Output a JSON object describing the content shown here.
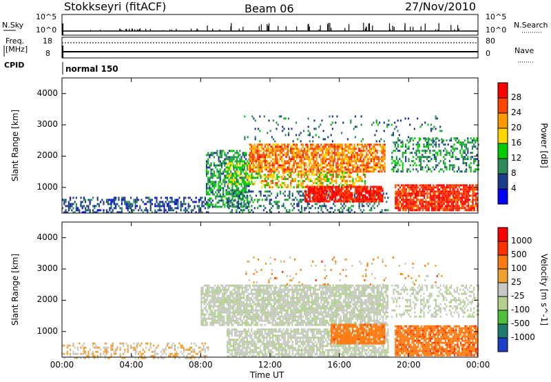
{
  "header": {
    "station": "Stokkseyri (fitACF)",
    "beam": "Beam 06",
    "date": "27/Nov/2010"
  },
  "status_panel": {
    "nsky_label": "N.Sky",
    "nsky_ticks": [
      "10^5",
      "10^0"
    ],
    "nsearch_label": "N.Search",
    "nsearch_ticks": [
      "10^5",
      "10^0"
    ],
    "freq_label_1": "Freq.",
    "freq_label_2": "[MHz]",
    "freq_ticks": [
      "18",
      "8"
    ],
    "nave_label": "Nave",
    "nave_ticks": [
      "80",
      "0"
    ],
    "cpid_label": "CPID",
    "cpid_value": "normal 150"
  },
  "colors": {
    "power_scale": [
      "#0000ff",
      "#1e3c8c",
      "#2e8b57",
      "#00cc00",
      "#ffd700",
      "#ff9900",
      "#ff4500",
      "#ff0000"
    ],
    "velocity_scale": [
      "#1a3fc9",
      "#1f7a6e",
      "#4dbf3a",
      "#b0d08c",
      "#c8c8c4",
      "#f0a030",
      "#ff7a10",
      "#ff3000",
      "#ff0000"
    ],
    "ground_scatter": "#c8c8c4"
  },
  "chart_data": [
    {
      "type": "heatmap",
      "name": "power",
      "ylabel": "Slant Range [km]",
      "xlabel": "Time UT",
      "x_ticks": [
        "00:00",
        "04:00",
        "08:00",
        "12:00",
        "16:00",
        "20:00",
        "00:00"
      ],
      "xlim_hours": [
        0,
        24
      ],
      "ylim_km": [
        180,
        4500
      ],
      "y_ticks": [
        1000,
        2000,
        3000,
        4000
      ],
      "colorbar_label": "Power [dB]",
      "colorbar_ticks": [
        "28",
        "24",
        "20",
        "16",
        "12",
        "8",
        "4"
      ],
      "colorbar_range": [
        0,
        30
      ],
      "regions": [
        {
          "t0": 0.0,
          "t1": 8.4,
          "r0": 180,
          "r1": 700,
          "density": 0.45,
          "v": 6,
          "spread": 3
        },
        {
          "t0": 8.3,
          "t1": 10.8,
          "r0": 400,
          "r1": 2200,
          "density": 0.55,
          "v": 10,
          "spread": 5
        },
        {
          "t0": 9.5,
          "t1": 11.5,
          "r0": 1100,
          "r1": 1800,
          "density": 0.6,
          "v": 14,
          "spread": 4
        },
        {
          "t0": 10.8,
          "t1": 18.6,
          "r0": 1500,
          "r1": 2400,
          "density": 0.75,
          "v": 22,
          "spread": 5
        },
        {
          "t0": 11.5,
          "t1": 17.5,
          "r0": 1000,
          "r1": 1500,
          "density": 0.55,
          "v": 18,
          "spread": 6
        },
        {
          "t0": 9.5,
          "t1": 18.8,
          "r0": 180,
          "r1": 900,
          "density": 0.3,
          "v": 8,
          "spread": 4
        },
        {
          "t0": 14.0,
          "t1": 18.5,
          "r0": 550,
          "r1": 1050,
          "density": 0.85,
          "v": 27,
          "spread": 3
        },
        {
          "t0": 19.2,
          "t1": 24.0,
          "r0": 250,
          "r1": 1100,
          "density": 0.85,
          "v": 26,
          "spread": 4
        },
        {
          "t0": 19.0,
          "t1": 24.0,
          "r0": 1500,
          "r1": 2600,
          "density": 0.35,
          "v": 10,
          "spread": 5
        },
        {
          "t0": 10.5,
          "t1": 22.0,
          "r0": 2500,
          "r1": 3300,
          "density": 0.08,
          "v": 8,
          "spread": 4
        }
      ]
    },
    {
      "type": "heatmap",
      "name": "velocity",
      "ylabel": "Slant Range [km]",
      "xlabel": "Time UT",
      "x_ticks": [
        "00:00",
        "04:00",
        "08:00",
        "12:00",
        "16:00",
        "20:00",
        "00:00"
      ],
      "xlim_hours": [
        0,
        24
      ],
      "ylim_km": [
        180,
        4500
      ],
      "y_ticks": [
        1000,
        2000,
        3000,
        4000
      ],
      "colorbar_label": "Velocity [m s^-1]",
      "colorbar_ticks": [
        "1000",
        "500",
        "100",
        "25",
        "-25",
        "-100",
        "-500",
        "-1000"
      ],
      "colorbar_range": [
        -1000,
        1000
      ],
      "regions": [
        {
          "t0": 0.0,
          "t1": 8.4,
          "r0": 180,
          "r1": 650,
          "density": 0.35,
          "v": 0.55,
          "spread": 0.1
        },
        {
          "t0": 8.0,
          "t1": 18.8,
          "r0": 1200,
          "r1": 2500,
          "density": 0.8,
          "v": 0.45,
          "spread": 0.02
        },
        {
          "t0": 9.5,
          "t1": 18.8,
          "r0": 180,
          "r1": 1100,
          "density": 0.75,
          "v": 0.45,
          "spread": 0.02
        },
        {
          "t0": 15.5,
          "t1": 18.6,
          "r0": 600,
          "r1": 1250,
          "density": 0.85,
          "v": 0.74,
          "spread": 0.04
        },
        {
          "t0": 19.2,
          "t1": 24.0,
          "r0": 250,
          "r1": 1200,
          "density": 0.85,
          "v": 0.74,
          "spread": 0.06
        },
        {
          "t0": 19.0,
          "t1": 24.0,
          "r0": 1500,
          "r1": 2500,
          "density": 0.35,
          "v": 0.45,
          "spread": 0.05
        },
        {
          "t0": 10.5,
          "t1": 22.0,
          "r0": 2500,
          "r1": 3400,
          "density": 0.06,
          "v": 0.6,
          "spread": 0.2
        }
      ]
    }
  ]
}
